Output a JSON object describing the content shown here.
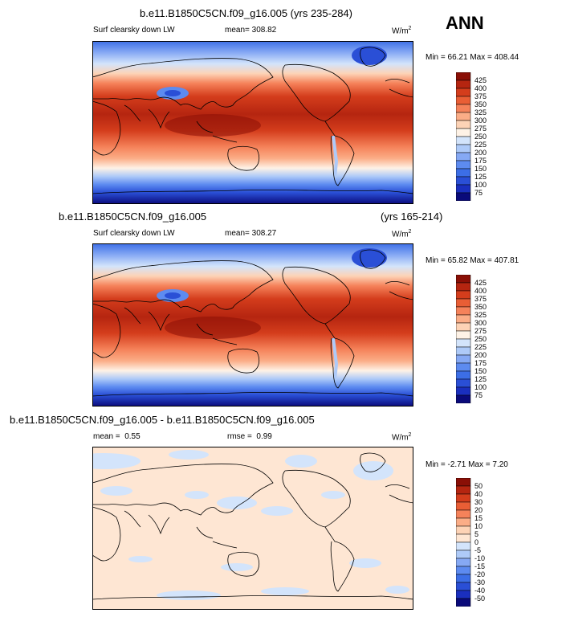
{
  "header": {
    "season": "ANN"
  },
  "colors": {
    "abs_palette": [
      "#0a0a7a",
      "#1a2fbe",
      "#2a4fd6",
      "#3c6ee6",
      "#5d8bf0",
      "#86a9f4",
      "#aecaf8",
      "#d3e4fb",
      "#fef2e6",
      "#fdd3b6",
      "#fbad87",
      "#f5825a",
      "#e95e35",
      "#d43d1c",
      "#b52510",
      "#8a0f06"
    ],
    "diff_palette": [
      "#0a0a7a",
      "#1a2fbe",
      "#2a4fd6",
      "#3c6ee6",
      "#5d8bf0",
      "#86a9f4",
      "#aecaf8",
      "#d3e4fb",
      "#fee6d3",
      "#fdd3b6",
      "#fbad87",
      "#f5825a",
      "#e95e35",
      "#d43d1c",
      "#b52510",
      "#8a0f06"
    ]
  },
  "chart_data": [
    {
      "type": "heatmap",
      "title": "b.e11.B1850C5CN.f09_g16.005 (yrs 235-284)",
      "variable": "Surf clearsky down LW",
      "mean_label": "mean=",
      "mean": "308.82",
      "units": "W/m",
      "units_exp": "2",
      "min_label": "Min =",
      "min": "66.21",
      "max_label": "Max =",
      "max": "408.44",
      "levels": [
        "425",
        "400",
        "375",
        "350",
        "325",
        "300",
        "275",
        "250",
        "225",
        "200",
        "175",
        "150",
        "125",
        "100",
        "75"
      ]
    },
    {
      "type": "heatmap",
      "title": "b.e11.B1850C5CN.f09_g16.005",
      "years": "(yrs 165-214)",
      "variable": "Surf clearsky down LW",
      "mean_label": "mean=",
      "mean": "308.27",
      "units": "W/m",
      "units_exp": "2",
      "min_label": "Min =",
      "min": "65.82",
      "max_label": "Max =",
      "max": "407.81",
      "levels": [
        "425",
        "400",
        "375",
        "350",
        "325",
        "300",
        "275",
        "250",
        "225",
        "200",
        "175",
        "150",
        "125",
        "100",
        "75"
      ]
    },
    {
      "type": "heatmap",
      "title": "b.e11.B1850C5CN.f09_g16.005 - b.e11.B1850C5CN.f09_g16.005",
      "mean_label": "mean =",
      "mean": "0.55",
      "rmse_label": "rmse =",
      "rmse": "0.99",
      "units": "W/m",
      "units_exp": "2",
      "min_label": "Min =",
      "min": "-2.71",
      "max_label": "Max =",
      "max": "7.20",
      "levels": [
        "50",
        "40",
        "30",
        "20",
        "15",
        "10",
        "5",
        "0",
        "-5",
        "-10",
        "-15",
        "-20",
        "-30",
        "-40",
        "-50"
      ]
    }
  ]
}
